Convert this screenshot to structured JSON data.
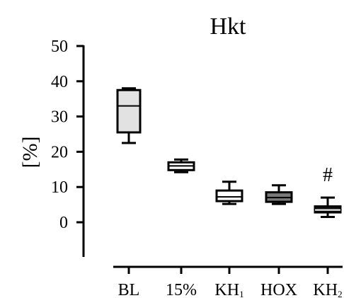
{
  "chart_data": {
    "type": "box",
    "title": "Hkt",
    "ylabel": "[%]",
    "xlabel": "",
    "ylim": [
      -10,
      50
    ],
    "y_ticks": [
      "50",
      "40",
      "30",
      "20",
      "10",
      "0"
    ],
    "categories": [
      {
        "base": "BL",
        "sub": ""
      },
      {
        "base": "15%",
        "sub": ""
      },
      {
        "base": "KH",
        "sub": "1"
      },
      {
        "base": "HOX",
        "sub": ""
      },
      {
        "base": "KH",
        "sub": "2"
      }
    ],
    "boxes": [
      {
        "min": 22.5,
        "q1": 25.5,
        "median": 33,
        "q3": 37.5,
        "max": 38,
        "fill": "#e2e2e2"
      },
      {
        "min": 14.2,
        "q1": 14.8,
        "median": 16,
        "q3": 17,
        "max": 17.8,
        "fill": "#ffffff"
      },
      {
        "min": 5.2,
        "q1": 6,
        "median": 7.2,
        "q3": 9,
        "max": 11.5,
        "fill": "#ffffff"
      },
      {
        "min": 5.2,
        "q1": 5.8,
        "median": 7,
        "q3": 8.5,
        "max": 10.5,
        "fill": "#7a7a7a"
      },
      {
        "min": 1.5,
        "q1": 2.8,
        "median": 3.5,
        "q3": 4.5,
        "max": 7,
        "fill": "#111111"
      }
    ],
    "annotations": [
      {
        "text": "#",
        "category": "KH"
      }
    ],
    "grid": false
  }
}
